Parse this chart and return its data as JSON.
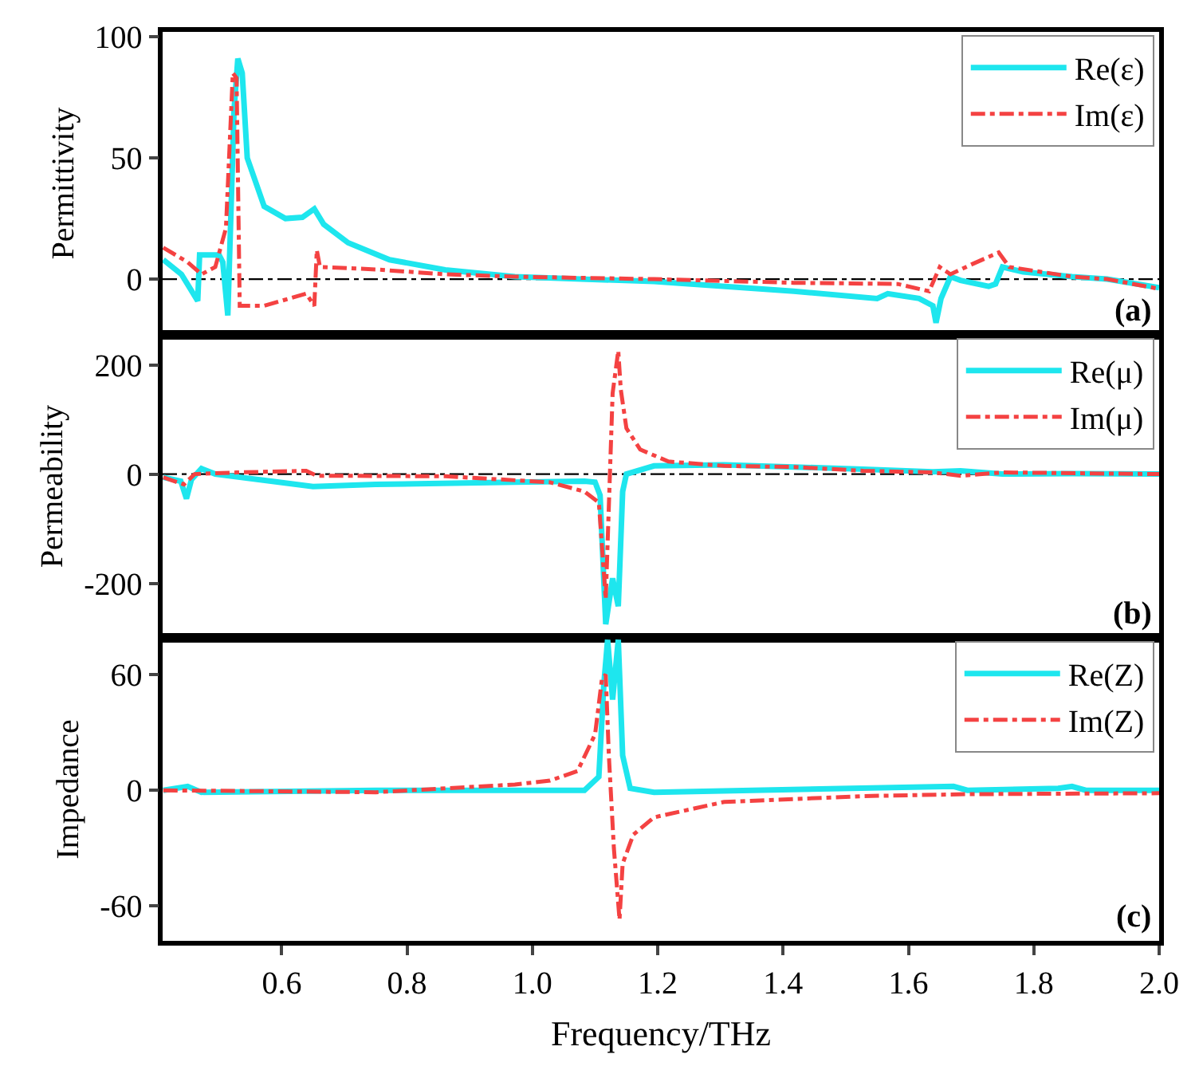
{
  "chart_data": [
    {
      "type": "line",
      "ylabel": "Permittivity",
      "xlim": [
        0.41,
        2.0
      ],
      "ylim": [
        -23,
        102
      ],
      "yticks": [
        0,
        50,
        100
      ],
      "tick_labels": "y",
      "legend": "top right",
      "grid": false,
      "annotations": [
        "(a)"
      ],
      "ref_lines": [
        {
          "axis": "y",
          "value": 0,
          "color": "#000000",
          "line_style": "dashdot"
        }
      ],
      "series": [
        {
          "name": "Re(ε)",
          "color": "#1ee6ee",
          "line_style": "solid",
          "x": [
            0.411,
            0.44,
            0.466,
            0.469,
            0.5,
            0.506,
            0.514,
            0.524,
            0.53,
            0.537,
            0.545,
            0.572,
            0.606,
            0.633,
            0.652,
            0.667,
            0.706,
            0.772,
            0.861,
            0.972,
            1.194,
            1.417,
            1.55,
            1.567,
            1.617,
            1.639,
            1.644,
            1.652,
            1.667,
            1.683,
            1.728,
            1.739,
            1.75,
            1.783,
            1.861,
            1.917,
            2.0
          ],
          "values": [
            8,
            2,
            -9,
            10,
            10,
            7,
            -15,
            70,
            91,
            85,
            50,
            30,
            25,
            25.5,
            29,
            22.6,
            15,
            8,
            3.8,
            1,
            -1,
            -5,
            -8,
            -6,
            -8,
            -11,
            -18,
            -8,
            1,
            -0.5,
            -3,
            -2,
            5,
            3,
            1,
            0,
            -3.5
          ]
        },
        {
          "name": "Im(ε)",
          "color": "#f44242",
          "line_style": "dashdot",
          "x": [
            0.411,
            0.45,
            0.472,
            0.494,
            0.511,
            0.522,
            0.528,
            0.533,
            0.572,
            0.639,
            0.652,
            0.656,
            0.661,
            0.75,
            0.861,
            0.972,
            1.194,
            1.417,
            1.583,
            1.633,
            1.65,
            1.667,
            1.7,
            1.744,
            1.761,
            1.861,
            1.917,
            2.0
          ],
          "values": [
            13,
            7,
            2,
            5,
            21,
            85,
            83,
            -11,
            -11,
            -6,
            -11,
            12,
            5,
            4,
            2,
            1,
            0,
            -1.5,
            -2,
            -5,
            5,
            2,
            6,
            11,
            5,
            1,
            0,
            -4
          ]
        }
      ]
    },
    {
      "type": "line",
      "ylabel": "Permeability",
      "xlim": [
        0.41,
        2.0
      ],
      "ylim": [
        -300,
        255
      ],
      "yticks": [
        -200,
        0,
        200
      ],
      "tick_labels": "y",
      "legend": "top right",
      "grid": false,
      "annotations": [
        "(b)"
      ],
      "ref_lines": [
        {
          "axis": "y",
          "value": 0,
          "color": "#000000",
          "line_style": "dashdot"
        }
      ],
      "series": [
        {
          "name": "Re(μ)",
          "color": "#1ee6ee",
          "line_style": "solid",
          "x": [
            0.411,
            0.439,
            0.448,
            0.456,
            0.472,
            0.494,
            0.583,
            0.65,
            0.75,
            0.972,
            1.083,
            1.1,
            1.108,
            1.117,
            1.128,
            1.137,
            1.144,
            1.15,
            1.194,
            1.306,
            1.417,
            1.528,
            1.639,
            1.683,
            1.75,
            1.861,
            2.0
          ],
          "values": [
            -6,
            -13,
            -45,
            -10,
            10,
            0,
            -13,
            -23,
            -19,
            -15,
            -13,
            -15,
            -39,
            -275,
            -191,
            -242,
            -32,
            0,
            15,
            17,
            13,
            9,
            4,
            6,
            0,
            1,
            0
          ]
        },
        {
          "name": "Im(μ)",
          "color": "#f44242",
          "line_style": "dashdot",
          "x": [
            0.411,
            0.444,
            0.461,
            0.528,
            0.639,
            0.656,
            0.861,
            1.028,
            1.083,
            1.106,
            1.117,
            1.128,
            1.137,
            1.141,
            1.15,
            1.172,
            1.217,
            1.306,
            1.417,
            1.528,
            1.639,
            1.683,
            1.75,
            2.0
          ],
          "values": [
            -6,
            -19,
            0,
            3,
            6,
            -3,
            -4,
            -15,
            -32,
            -52,
            -229,
            148,
            226,
            155,
            84,
            45,
            23,
            15,
            13,
            6,
            3,
            -3,
            3,
            0
          ]
        }
      ]
    },
    {
      "type": "line",
      "ylabel": "Impedance",
      "xlabel": "Frequency/THz",
      "xlim": [
        0.41,
        2.0
      ],
      "xticks": [
        {
          "value": 0.6,
          "label": "0.6"
        },
        {
          "value": 0.8,
          "label": "0.8"
        },
        {
          "value": 1.0,
          "label": "1.0"
        },
        {
          "value": 1.2,
          "label": "1.2"
        },
        {
          "value": 1.4,
          "label": "1.4"
        },
        {
          "value": 1.6,
          "label": "1.6"
        },
        {
          "value": 1.8,
          "label": "1.8"
        },
        {
          "value": 2.0,
          "label": "2.0"
        }
      ],
      "ylim": [
        -78,
        79
      ],
      "yticks": [
        -60,
        0,
        60
      ],
      "legend": "top right",
      "grid": false,
      "annotations": [
        "(c)"
      ],
      "series": [
        {
          "name": "Re(Z)",
          "color": "#1ee6ee",
          "line_style": "solid",
          "x": [
            0.411,
            0.45,
            0.472,
            0.75,
            1.083,
            1.106,
            1.114,
            1.12,
            1.128,
            1.137,
            1.144,
            1.156,
            1.194,
            1.672,
            1.694,
            1.839,
            1.861,
            1.883,
            2.0
          ],
          "values": [
            0,
            2,
            -1,
            0,
            0,
            7,
            55,
            78,
            47,
            78,
            18,
            1,
            -1,
            2,
            0,
            1,
            2,
            0,
            0
          ]
        },
        {
          "name": "Im(Z)",
          "color": "#f44242",
          "line_style": "dashdot",
          "x": [
            0.411,
            0.75,
            0.972,
            1.028,
            1.072,
            1.1,
            1.111,
            1.117,
            1.122,
            1.13,
            1.139,
            1.144,
            1.161,
            1.194,
            1.306,
            1.528,
            1.694,
            2.0
          ],
          "values": [
            0,
            -1,
            3,
            5,
            10,
            29,
            58,
            60,
            18,
            -30,
            -67,
            -38,
            -23,
            -14,
            -6,
            -3,
            -2,
            -1.5
          ]
        }
      ]
    }
  ]
}
